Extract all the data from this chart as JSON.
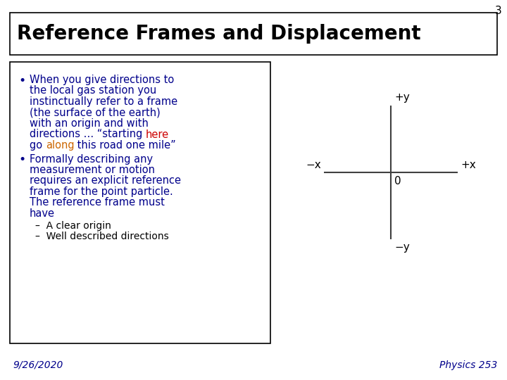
{
  "slide_number": "3",
  "title": "Reference Frames and Displacement",
  "background_color": "#ffffff",
  "title_color": "#000000",
  "title_fontsize": 20,
  "bullet_color": "#00008B",
  "bullet_fontsize": 10.5,
  "sub_bullet_fontsize": 10,
  "sub_bullet_color": "#000000",
  "highlight_red": "#cc0000",
  "highlight_orange": "#cc6600",
  "date_text": "9/26/2020",
  "course_text": "Physics 253",
  "footer_color": "#00008B",
  "footer_fontsize": 10,
  "axis_label_fs": 11,
  "axis_labels": {
    "plus_y": "+y",
    "minus_x": "−x",
    "plus_x": "+x",
    "minus_y": "−y",
    "origin": "0"
  },
  "bullet1_lines": [
    [
      {
        "text": "When you give directions to",
        "color": "#00008B"
      }
    ],
    [
      {
        "text": "the local gas station you",
        "color": "#00008B"
      }
    ],
    [
      {
        "text": "instinctually refer to a frame",
        "color": "#00008B"
      }
    ],
    [
      {
        "text": "(the surface of the earth)",
        "color": "#00008B"
      }
    ],
    [
      {
        "text": "with an origin and with",
        "color": "#00008B"
      }
    ],
    [
      {
        "text": "directions … “starting ",
        "color": "#00008B"
      },
      {
        "text": "here",
        "color": "#cc0000"
      }
    ],
    [
      {
        "text": "go ",
        "color": "#00008B"
      },
      {
        "text": "along",
        "color": "#cc6600"
      },
      {
        "text": " this road one mile”",
        "color": "#00008B"
      }
    ]
  ],
  "bullet2_lines": [
    "Formally describing any",
    "measurement or motion",
    "requires an explicit reference",
    "frame for the point particle.",
    "The reference frame must",
    "have"
  ],
  "sub_bullet1": "A clear origin",
  "sub_bullet2": "Well described directions"
}
